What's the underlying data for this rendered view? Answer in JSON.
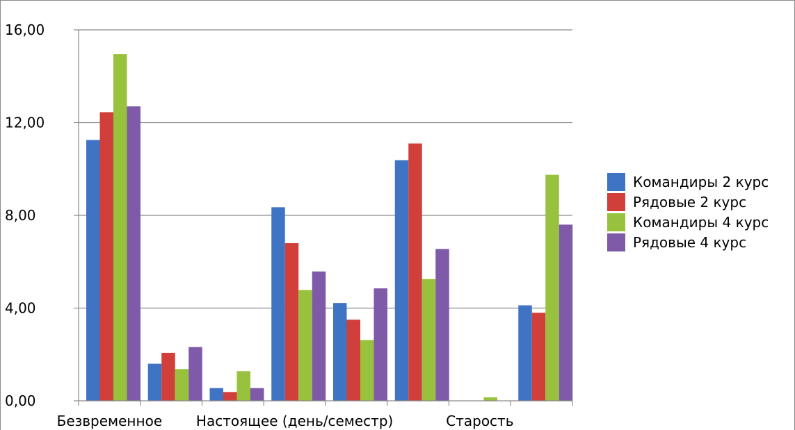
{
  "chart_data": {
    "type": "bar",
    "categories": [
      "Безвременное",
      "",
      "",
      "Настоящее (день/семестр)",
      "",
      "",
      "Старость",
      ""
    ],
    "series": [
      {
        "name": "Командиры 2 курс",
        "color": "#3f74c4",
        "values": [
          11.25,
          1.6,
          0.55,
          8.35,
          4.22,
          10.38,
          0.0,
          4.12
        ]
      },
      {
        "name": "Рядовые 2 курс",
        "color": "#d13f3b",
        "values": [
          12.45,
          2.07,
          0.38,
          6.8,
          3.5,
          11.1,
          0.0,
          3.8
        ]
      },
      {
        "name": "Командиры 4 курс",
        "color": "#98c23d",
        "values": [
          14.95,
          1.37,
          1.28,
          4.78,
          2.62,
          5.25,
          0.15,
          9.75
        ]
      },
      {
        "name": "Рядовые 4 курс",
        "color": "#7e5aa8",
        "values": [
          12.7,
          2.32,
          0.55,
          5.58,
          4.85,
          6.55,
          0.0,
          7.6
        ]
      }
    ],
    "y_ticks": [
      "0,00",
      "4,00",
      "8,00",
      "12,00",
      "16,00"
    ],
    "ylim": [
      0,
      16
    ],
    "grid": true,
    "legend": "right",
    "title": "",
    "xlabel": "",
    "ylabel": ""
  }
}
